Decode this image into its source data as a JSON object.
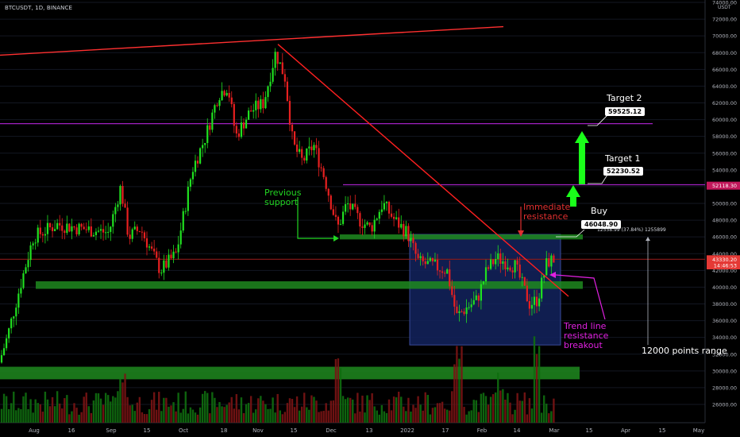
{
  "header": {
    "ticker": "BTCUSDT, 1D, BINANCE",
    "currency": "USDT"
  },
  "chart_data": {
    "type": "candlestick",
    "y_ticks": [
      26000,
      28000,
      30000,
      32000,
      34000,
      36000,
      38000,
      40000,
      42000,
      44000,
      46000,
      48000,
      50000,
      52000,
      54000,
      56000,
      58000,
      60000,
      62000,
      64000,
      66000,
      68000,
      70000,
      72000,
      74000
    ],
    "x_ticks": [
      "Aug",
      "16",
      "Sep",
      "15",
      "Oct",
      "18",
      "Nov",
      "15",
      "Dec",
      "13",
      "2022",
      "17",
      "Feb",
      "14",
      "Mar",
      "15",
      "Apr",
      "15",
      "May"
    ],
    "price_tags": [
      {
        "value": "52118.30",
        "y": 52118,
        "color": "#c2185b"
      },
      {
        "value": "43330.20",
        "y": 43330,
        "color": "#e53935"
      },
      {
        "value": "14:46:53",
        "y": 42600,
        "color": "#e53935"
      }
    ],
    "horizontal_levels": [
      {
        "name": "target-2-line",
        "y": 59525.12,
        "color": "#a020c0"
      },
      {
        "name": "target-1-line",
        "y": 52230.52,
        "color": "#a020c0"
      },
      {
        "name": "current-price-line",
        "y": 43330,
        "color": "#8b1a1a"
      }
    ],
    "zones": [
      {
        "name": "upper-support-zone",
        "y_top": 46300,
        "y_bottom": 45700
      },
      {
        "name": "middle-support-zone",
        "y_top": 40700,
        "y_bottom": 39800
      },
      {
        "name": "lower-support-zone",
        "y_top": 30500,
        "y_bottom": 29000
      }
    ],
    "range_box": {
      "y_top": 46300,
      "y_bottom": 33100
    },
    "trendlines": [
      {
        "name": "upper-red-trendline",
        "color": "#ff3030"
      },
      {
        "name": "descending-trendline",
        "color": "#ff2020"
      }
    ],
    "annotations": {
      "previous_support": "Previous support",
      "immediate_resistance": "Immediate resistance",
      "buy": "Buy",
      "buy_price": "46048.90",
      "target1": "Target 1",
      "target1_price": "52230.52",
      "target2": "Target 2",
      "target2_price": "59525.12",
      "measure": "12558.99 (37.84%) 1255899",
      "trend_break": "Trend line resistance breakout",
      "range": "12000 points range"
    }
  }
}
